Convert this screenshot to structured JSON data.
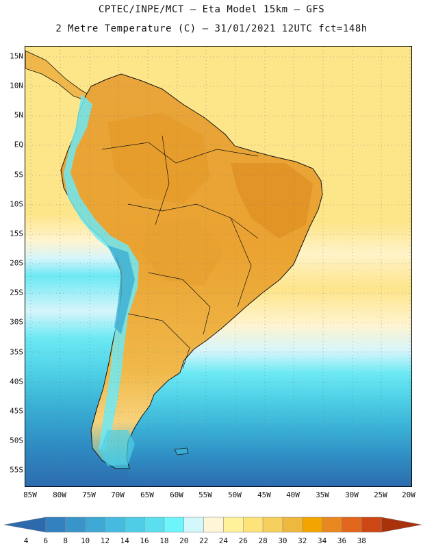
{
  "title_line1": "CPTEC/INPE/MCT –  Eta Model 15km – GFS",
  "title_line2": "2 Metre Temperature (C) – 31/01/2021 12UTC fct=148h",
  "map": {
    "lat_ticks": [
      "15N",
      "10N",
      "5N",
      "EQ",
      "5S",
      "10S",
      "15S",
      "20S",
      "25S",
      "30S",
      "35S",
      "40S",
      "45S",
      "50S",
      "55S"
    ],
    "lon_ticks": [
      "85W",
      "80W",
      "75W",
      "70W",
      "65W",
      "60W",
      "55W",
      "50W",
      "45W",
      "40W",
      "35W",
      "30W",
      "25W",
      "20W"
    ],
    "grid": true,
    "ocean_north_color": "#fde58a",
    "ocean_south_colors": [
      "#d6f5fb",
      "#6de9f4",
      "#4ed0e6",
      "#39aed4",
      "#2f8ec4",
      "#2c6aad"
    ],
    "land_colors": [
      "#f2b63c",
      "#e8a02c",
      "#f6cb5a",
      "#7fe3ef",
      "#2f8ec4"
    ]
  },
  "colorbar": {
    "labels": [
      "4",
      "6",
      "8",
      "10",
      "12",
      "14",
      "16",
      "18",
      "20",
      "22",
      "24",
      "26",
      "28",
      "30",
      "32",
      "34",
      "36",
      "38"
    ],
    "colors": [
      "#2c6aad",
      "#3381bf",
      "#3995c9",
      "#3fa7d4",
      "#47bbdf",
      "#4fcde6",
      "#5bdfee",
      "#6ef4fb",
      "#d3f8fb",
      "#fff6d8",
      "#fff29a",
      "#fde37a",
      "#f6cf5c",
      "#ecb93e",
      "#f2a500",
      "#e98720",
      "#e2661b",
      "#cc4713",
      "#a8320c"
    ]
  }
}
